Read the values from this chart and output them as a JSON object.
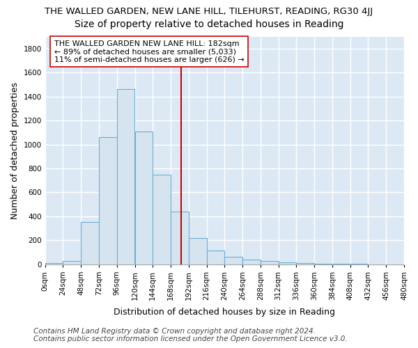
{
  "title": "THE WALLED GARDEN, NEW LANE HILL, TILEHURST, READING, RG30 4JJ",
  "subtitle": "Size of property relative to detached houses in Reading",
  "xlabel": "Distribution of detached houses by size in Reading",
  "ylabel": "Number of detached properties",
  "bar_edges": [
    0,
    24,
    48,
    72,
    96,
    120,
    144,
    168,
    192,
    216,
    240,
    264,
    288,
    312,
    336,
    360,
    384,
    408,
    432,
    456,
    480
  ],
  "bar_heights": [
    10,
    30,
    350,
    1060,
    1460,
    1110,
    750,
    440,
    220,
    115,
    60,
    40,
    25,
    15,
    10,
    5,
    3,
    2,
    1,
    1
  ],
  "bar_color": "#d6e4f0",
  "bar_edge_color": "#6aaed6",
  "vline_x": 182,
  "vline_color": "#cc0000",
  "annotation_text": "THE WALLED GARDEN NEW LANE HILL: 182sqm\n← 89% of detached houses are smaller (5,033)\n11% of semi-detached houses are larger (626) →",
  "annotation_box_color": "#ffffff",
  "annotation_box_edge": "#cc0000",
  "ylim": [
    0,
    1900
  ],
  "yticks": [
    0,
    200,
    400,
    600,
    800,
    1000,
    1200,
    1400,
    1600,
    1800
  ],
  "bg_color": "#dce9f5",
  "grid_color": "#ffffff",
  "fig_bg_color": "#ffffff",
  "footer_line1": "Contains HM Land Registry data © Crown copyright and database right 2024.",
  "footer_line2": "Contains public sector information licensed under the Open Government Licence v3.0.",
  "title_fontsize": 9.5,
  "subtitle_fontsize": 10,
  "axis_label_fontsize": 9,
  "tick_fontsize": 7.5,
  "annotation_fontsize": 8,
  "footer_fontsize": 7.5
}
